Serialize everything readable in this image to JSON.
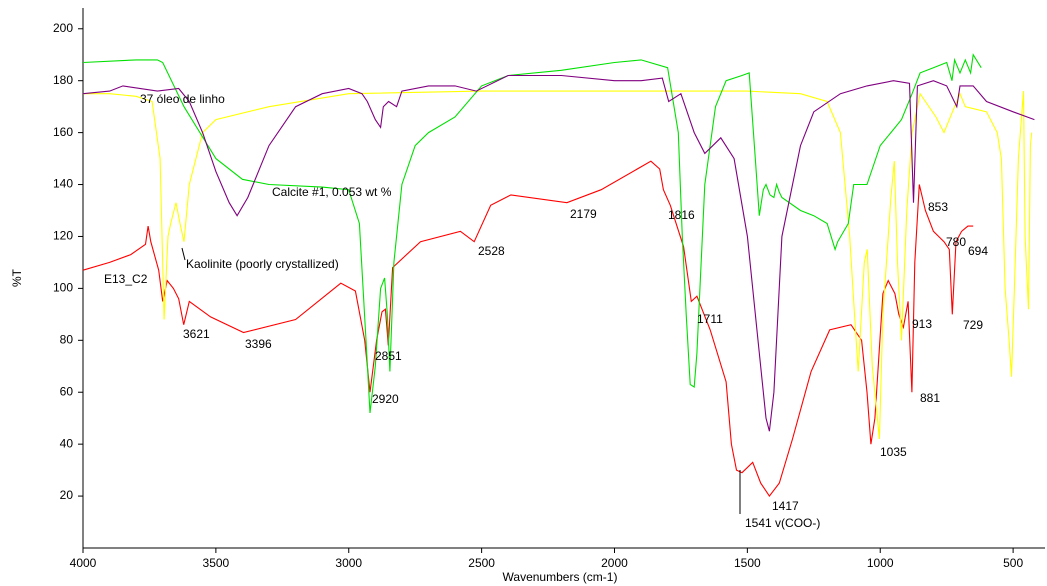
{
  "chart_data": {
    "type": "line",
    "x_label": "Wavenumbers (cm-1)",
    "y_label": "%T",
    "xlim": [
      4000,
      380
    ],
    "ylim": [
      0,
      208
    ],
    "xticks": [
      4000,
      3500,
      3000,
      2500,
      2000,
      1500,
      1000,
      500
    ],
    "yticks": [
      20,
      40,
      60,
      80,
      100,
      120,
      140,
      160,
      180,
      200
    ],
    "series": [
      {
        "name": "E13_C2",
        "color": "#ff0000",
        "x": [
          4000,
          3900,
          3820,
          3765,
          3755,
          3745,
          3715,
          3700,
          3683,
          3660,
          3640,
          3621,
          3600,
          3520,
          3396,
          3200,
          3030,
          2975,
          2940,
          2920,
          2895,
          2875,
          2862,
          2851,
          2835,
          2730,
          2580,
          2528,
          2466,
          2390,
          2179,
          2050,
          1863,
          1830,
          1816,
          1790,
          1740,
          1711,
          1690,
          1640,
          1580,
          1560,
          1541,
          1520,
          1480,
          1450,
          1417,
          1380,
          1330,
          1260,
          1190,
          1110,
          1070,
          1050,
          1035,
          1020,
          990,
          970,
          945,
          930,
          913,
          895,
          881,
          870,
          853,
          830,
          800,
          780,
          760,
          740,
          729,
          715,
          694,
          670,
          650
        ],
        "values": [
          107,
          110,
          113,
          117,
          124,
          118,
          107,
          95,
          103,
          100,
          96,
          86,
          95,
          89,
          83,
          88,
          102,
          99,
          80,
          60,
          80,
          91,
          92,
          78,
          108,
          118,
          122,
          118,
          132,
          136,
          133,
          138,
          149,
          146,
          138,
          132,
          116,
          95,
          97,
          84,
          64,
          40,
          30,
          29,
          33,
          25,
          20,
          25,
          42,
          68,
          84,
          86,
          80,
          60,
          40,
          50,
          98,
          103,
          98,
          90,
          85,
          95,
          60,
          110,
          140,
          130,
          122,
          120,
          118,
          115,
          90,
          118,
          122,
          124,
          124
        ]
      },
      {
        "name": "Kaolinite (poorly crystallized)",
        "color": "#ffff00",
        "x": [
          4000,
          3900,
          3800,
          3740,
          3710,
          3695,
          3680,
          3670,
          3650,
          3635,
          3620,
          3600,
          3550,
          3500,
          3300,
          3000,
          2500,
          2000,
          1500,
          1300,
          1200,
          1150,
          1115,
          1100,
          1083,
          1060,
          1049,
          1030,
          1003,
          990,
          960,
          947,
          935,
          920,
          900,
          880,
          850,
          790,
          760,
          740,
          700,
          680,
          600,
          560,
          544,
          530,
          515,
          506,
          495,
          480,
          461,
          455,
          442,
          435,
          430
        ],
        "values": [
          175,
          175,
          174,
          172,
          150,
          88,
          120,
          125,
          133,
          125,
          118,
          140,
          160,
          165,
          170,
          175,
          176,
          176,
          176,
          175,
          172,
          160,
          120,
          95,
          68,
          110,
          115,
          70,
          42,
          90,
          135,
          149,
          110,
          80,
          130,
          160,
          175,
          166,
          160,
          165,
          175,
          170,
          168,
          160,
          150,
          100,
          80,
          66,
          100,
          150,
          176,
          120,
          92,
          155,
          160
        ]
      },
      {
        "name": "37 óleo de linho",
        "color": "#00e000",
        "x": [
          4000,
          3800,
          3720,
          3700,
          3620,
          3500,
          3400,
          3300,
          3100,
          3000,
          2960,
          2935,
          2920,
          2900,
          2880,
          2865,
          2855,
          2845,
          2830,
          2800,
          2750,
          2700,
          2600,
          2500,
          2400,
          2200,
          2000,
          1900,
          1800,
          1760,
          1745,
          1730,
          1715,
          1700,
          1690,
          1660,
          1620,
          1580,
          1520,
          1493,
          1470,
          1455,
          1440,
          1430,
          1415,
          1400,
          1390,
          1380,
          1370,
          1300,
          1250,
          1200,
          1170,
          1160,
          1120,
          1100,
          1050,
          1000,
          960,
          920,
          880,
          850,
          800,
          750,
          730,
          720,
          700,
          680,
          660,
          650,
          620
        ],
        "values": [
          187,
          188,
          188,
          187,
          170,
          150,
          142,
          140,
          139,
          138,
          125,
          80,
          52,
          70,
          100,
          104,
          90,
          68,
          110,
          140,
          155,
          160,
          166,
          178,
          182,
          184,
          187,
          188,
          185,
          160,
          120,
          90,
          63,
          62,
          75,
          140,
          170,
          180,
          182,
          183,
          150,
          128,
          138,
          140,
          136,
          135,
          140,
          137,
          135,
          130,
          128,
          125,
          115,
          118,
          125,
          140,
          140,
          155,
          160,
          165,
          175,
          183,
          185,
          187,
          180,
          188,
          183,
          188,
          183,
          190,
          185
        ]
      },
      {
        "name": "Calcite #1, 0.053 wt %",
        "color": "#800080",
        "x": [
          4000,
          3900,
          3850,
          3720,
          3640,
          3600,
          3550,
          3500,
          3450,
          3420,
          3380,
          3300,
          3200,
          3100,
          3000,
          2950,
          2930,
          2900,
          2880,
          2870,
          2850,
          2820,
          2800,
          2700,
          2600,
          2520,
          2400,
          2200,
          2000,
          1900,
          1820,
          1796,
          1750,
          1700,
          1660,
          1600,
          1550,
          1500,
          1460,
          1430,
          1417,
          1400,
          1370,
          1300,
          1250,
          1150,
          1050,
          950,
          890,
          875,
          860,
          800,
          750,
          712,
          700,
          650,
          600,
          500,
          420
        ],
        "values": [
          175,
          176,
          178,
          176,
          177,
          172,
          160,
          145,
          133,
          128,
          135,
          155,
          170,
          175,
          177,
          175,
          172,
          165,
          162,
          170,
          172,
          170,
          176,
          178,
          178,
          176,
          182,
          182,
          180,
          180,
          181,
          172,
          175,
          160,
          152,
          158,
          150,
          120,
          80,
          50,
          45,
          60,
          120,
          155,
          168,
          175,
          178,
          180,
          179,
          133,
          178,
          180,
          178,
          170,
          178,
          178,
          172,
          168,
          165
        ]
      }
    ],
    "annotations": [
      "3621",
      "3396",
      "2920",
      "2851",
      "2528",
      "2179",
      "1816",
      "1711",
      "1417",
      "1541 v(COO-)",
      "1035",
      "913",
      "881",
      "853",
      "780",
      "694",
      "729"
    ]
  }
}
